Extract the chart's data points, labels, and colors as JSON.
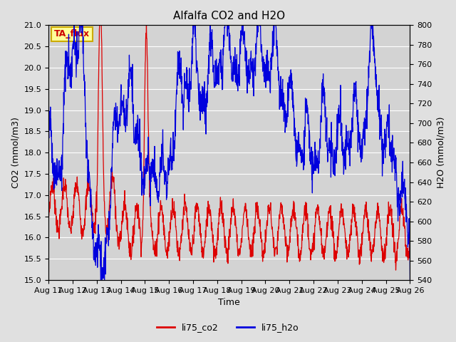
{
  "title": "Alfalfa CO2 and H2O",
  "xlabel": "Time",
  "ylabel_left": "CO2 (mmol/m3)",
  "ylabel_right": "H2O (mmol/m3)",
  "ylim_left": [
    15.0,
    21.0
  ],
  "ylim_right": [
    540,
    800
  ],
  "xtick_labels": [
    "Aug 11",
    "Aug 12",
    "Aug 13",
    "Aug 14",
    "Aug 15",
    "Aug 16",
    "Aug 17",
    "Aug 18",
    "Aug 19",
    "Aug 20",
    "Aug 21",
    "Aug 22",
    "Aug 23",
    "Aug 24",
    "Aug 25",
    "Aug 26"
  ],
  "yticks_left": [
    15.0,
    15.5,
    16.0,
    16.5,
    17.0,
    17.5,
    18.0,
    18.5,
    19.0,
    19.5,
    20.0,
    20.5,
    21.0
  ],
  "yticks_right": [
    540,
    560,
    580,
    600,
    620,
    640,
    660,
    680,
    700,
    720,
    740,
    760,
    780,
    800
  ],
  "legend_entries": [
    "li75_co2",
    "li75_h2o"
  ],
  "legend_colors": [
    "#dd0000",
    "#0000dd"
  ],
  "co2_color": "#dd0000",
  "h2o_color": "#0000dd",
  "bg_color": "#e0e0e0",
  "plot_bg_color": "#d3d3d3",
  "grid_color": "#ffffff",
  "annotation_text": "TA_flux",
  "annotation_bg": "#ffff99",
  "annotation_border": "#ccaa00",
  "annotation_text_color": "#cc0000",
  "n_points": 1500
}
